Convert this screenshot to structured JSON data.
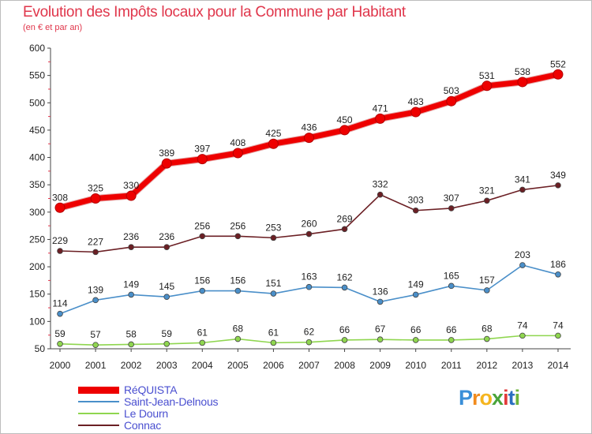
{
  "header": {
    "title": "Evolution des Impôts locaux pour la Commune par Habitant",
    "subtitle": "(en € et par an)"
  },
  "logo": {
    "letters": [
      "P",
      "r",
      "o",
      "x",
      "i",
      "t",
      "i"
    ],
    "colors": [
      "#3a8fd8",
      "#f28c1e",
      "#f5b51f",
      "#4aa43a",
      "#e23a3a",
      "#2a6fc0",
      "#6cb33a"
    ]
  },
  "chart_data": {
    "type": "line",
    "title": "Evolution des Impôts locaux pour la Commune par Habitant",
    "subtitle": "(en € et par an)",
    "xlabel": "",
    "ylabel": "",
    "x": [
      "2000",
      "2001",
      "2002",
      "2003",
      "2004",
      "2005",
      "2006",
      "2007",
      "2008",
      "2009",
      "2010",
      "2011",
      "2012",
      "2013",
      "2014"
    ],
    "ylim": [
      50,
      600
    ],
    "yticks": [
      50,
      100,
      150,
      200,
      250,
      300,
      350,
      400,
      450,
      500,
      550,
      600
    ],
    "grid": false,
    "legend_position": "bottom-left",
    "series": [
      {
        "name": "RéQUISTA",
        "color": "#ee0000",
        "values": [
          308,
          325,
          330,
          389,
          397,
          408,
          425,
          436,
          450,
          471,
          483,
          503,
          531,
          538,
          552
        ]
      },
      {
        "name": "Saint-Jean-Delnous",
        "color": "#4a8fc9",
        "values": [
          114,
          139,
          149,
          145,
          156,
          156,
          151,
          163,
          162,
          136,
          149,
          165,
          157,
          203,
          186
        ]
      },
      {
        "name": "Le Dourn",
        "color": "#8fd64f",
        "values": [
          59,
          57,
          58,
          59,
          61,
          68,
          61,
          62,
          66,
          67,
          66,
          66,
          68,
          74,
          74
        ]
      },
      {
        "name": "Connac",
        "color": "#6b1f24",
        "values": [
          229,
          227,
          236,
          236,
          256,
          256,
          253,
          260,
          269,
          332,
          303,
          307,
          321,
          341,
          349
        ]
      }
    ]
  }
}
